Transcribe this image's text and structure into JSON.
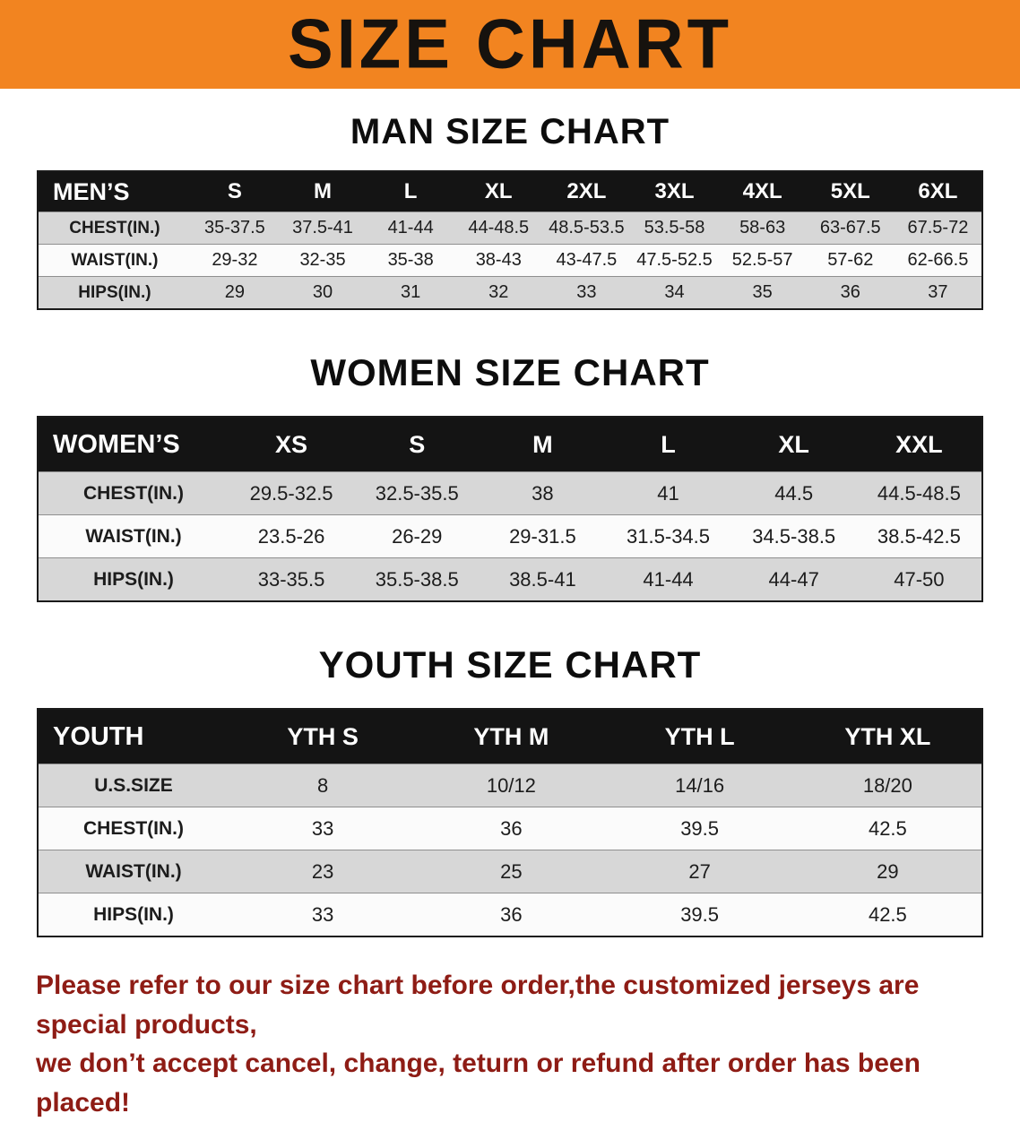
{
  "banner": {
    "title": "SIZE CHART",
    "background": "#F28420",
    "text_color": "#16120e"
  },
  "sections": [
    {
      "id": "men",
      "title": "MAN SIZE CHART",
      "corner_label": "MEN’S",
      "columns": [
        "S",
        "M",
        "L",
        "XL",
        "2XL",
        "3XL",
        "4XL",
        "5XL",
        "6XL"
      ],
      "rows": [
        {
          "label": "CHEST(IN.)",
          "values": [
            "35-37.5",
            "37.5-41",
            "41-44",
            "44-48.5",
            "48.5-53.5",
            "53.5-58",
            "58-63",
            "63-67.5",
            "67.5-72"
          ]
        },
        {
          "label": "WAIST(IN.)",
          "values": [
            "29-32",
            "32-35",
            "35-38",
            "38-43",
            "43-47.5",
            "47.5-52.5",
            "52.5-57",
            "57-62",
            "62-66.5"
          ]
        },
        {
          "label": "HIPS(IN.)",
          "values": [
            "29",
            "30",
            "31",
            "32",
            "33",
            "34",
            "35",
            "36",
            "37"
          ]
        }
      ]
    },
    {
      "id": "women",
      "title": "WOMEN SIZE CHART",
      "corner_label": "WOMEN’S",
      "columns": [
        "XS",
        "S",
        "M",
        "L",
        "XL",
        "XXL"
      ],
      "rows": [
        {
          "label": "CHEST(IN.)",
          "values": [
            "29.5-32.5",
            "32.5-35.5",
            "38",
            "41",
            "44.5",
            "44.5-48.5"
          ]
        },
        {
          "label": "WAIST(IN.)",
          "values": [
            "23.5-26",
            "26-29",
            "29-31.5",
            "31.5-34.5",
            "34.5-38.5",
            "38.5-42.5"
          ]
        },
        {
          "label": "HIPS(IN.)",
          "values": [
            "33-35.5",
            "35.5-38.5",
            "38.5-41",
            "41-44",
            "44-47",
            "47-50"
          ]
        }
      ]
    },
    {
      "id": "youth",
      "title": "YOUTH SIZE CHART",
      "corner_label": "YOUTH",
      "columns": [
        "YTH S",
        "YTH M",
        "YTH L",
        "YTH XL"
      ],
      "rows": [
        {
          "label": "U.S.SIZE",
          "values": [
            "8",
            "10/12",
            "14/16",
            "18/20"
          ]
        },
        {
          "label": "CHEST(IN.)",
          "values": [
            "33",
            "36",
            "39.5",
            "42.5"
          ]
        },
        {
          "label": "WAIST(IN.)",
          "values": [
            "23",
            "25",
            "27",
            "29"
          ]
        },
        {
          "label": "HIPS(IN.)",
          "values": [
            "33",
            "36",
            "39.5",
            "42.5"
          ]
        }
      ]
    }
  ],
  "footer": {
    "lines": [
      "Please refer to our size chart before order,the customized jerseys are special products,",
      "we don’t accept cancel, change, teturn or refund after order has been placed!"
    ],
    "text_color": "#8E1C15"
  },
  "colors": {
    "table_header_bg": "#141414",
    "shaded_row": "#D7D7D7",
    "plain_row": "#FBFBFB"
  }
}
